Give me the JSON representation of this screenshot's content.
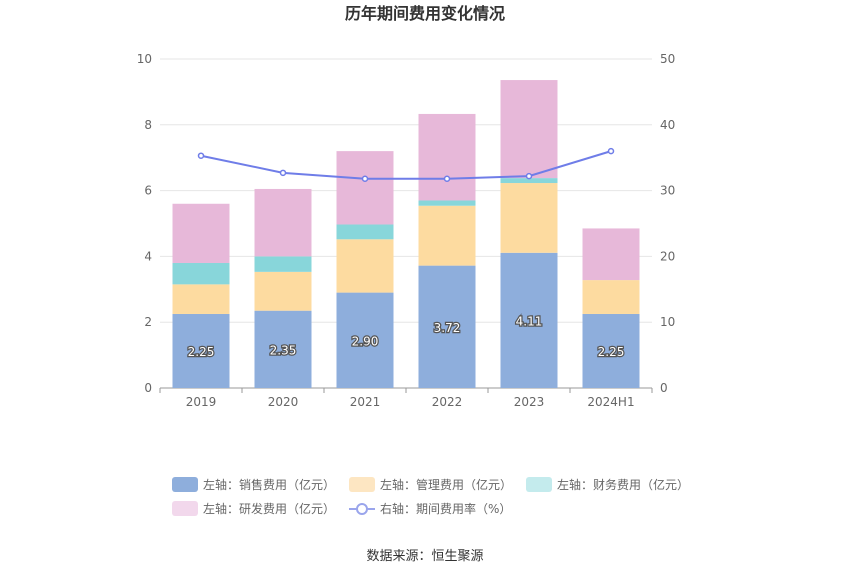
{
  "chart_data": {
    "type": "bar",
    "title": "历年期间费用变化情况",
    "categories": [
      "2019",
      "2020",
      "2021",
      "2022",
      "2023",
      "2024H1"
    ],
    "left_axis": {
      "ylim": [
        0,
        10
      ],
      "ticks": [
        "0",
        "2",
        "4",
        "6",
        "8",
        "10"
      ]
    },
    "right_axis": {
      "ylim": [
        0,
        50
      ],
      "ticks": [
        "0",
        "10",
        "20",
        "30",
        "40",
        "50"
      ]
    },
    "stacked": true,
    "series": [
      {
        "name": "左轴：销售费用（亿元）",
        "axis": "left",
        "color": "#8eaedc",
        "values": [
          2.25,
          2.35,
          2.9,
          3.72,
          4.11,
          2.25
        ],
        "labels": [
          "2.25",
          "2.35",
          "2.90",
          "3.72",
          "4.11",
          "2.25"
        ]
      },
      {
        "name": "左轴：管理费用（亿元）",
        "axis": "left",
        "color": "#fddba0",
        "values": [
          0.9,
          1.18,
          1.62,
          1.82,
          2.12,
          1.03
        ]
      },
      {
        "name": "左轴：财务费用（亿元）",
        "axis": "left",
        "color": "#88d6da",
        "values": [
          0.65,
          0.47,
          0.45,
          0.16,
          0.15,
          0.0
        ]
      },
      {
        "name": "左轴：研发费用（亿元）",
        "axis": "left",
        "color": "#e7b8d9",
        "values": [
          1.8,
          2.05,
          2.23,
          2.63,
          2.98,
          1.57
        ]
      },
      {
        "name": "右轴：期间费用率（%）",
        "axis": "right",
        "type": "line",
        "color": "#6f7de8",
        "values": [
          35.3,
          32.7,
          31.8,
          31.8,
          32.2,
          36.0
        ]
      }
    ],
    "legend_position": "bottom",
    "grid": true
  },
  "legend_colors": [
    "#8eaedc",
    "#fddba0",
    "#c4ebed",
    "#f2d8ec",
    "#9aa5ec"
  ],
  "source_text": "数据来源：恒生聚源"
}
